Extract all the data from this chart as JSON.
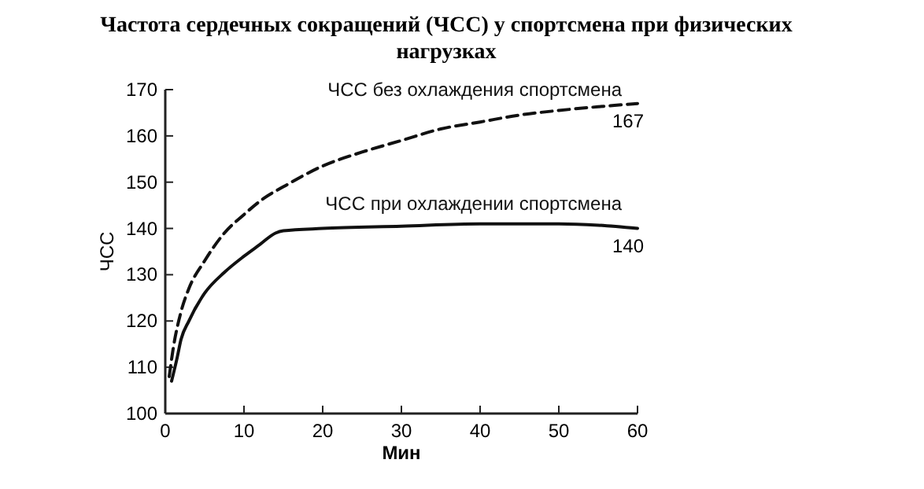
{
  "chart_data": {
    "type": "line",
    "title": "Частота сердечных сокращений (ЧСС) у спортсмена при физических нагрузках",
    "xlabel": "Мин",
    "ylabel": "ЧСС",
    "xlim": [
      0,
      60
    ],
    "xticks": [
      0,
      10,
      20,
      30,
      40,
      50,
      60
    ],
    "ylim": [
      100,
      170
    ],
    "yticks": [
      100,
      110,
      120,
      130,
      140,
      150,
      160,
      170
    ],
    "grid": false,
    "legend": false,
    "series": [
      {
        "name": "ЧСС без охлаждения спортсмена",
        "color": "#111111",
        "line_style": "dashed",
        "x": [
          0.5,
          1,
          2,
          3,
          5,
          7.5,
          10,
          12.5,
          15,
          20,
          25,
          30,
          35,
          40,
          45,
          50,
          55,
          60
        ],
        "values": [
          108,
          114,
          122,
          127,
          133,
          139,
          143,
          146.5,
          149,
          153.5,
          156.5,
          159,
          161.5,
          163,
          164.5,
          165.5,
          166.3,
          167
        ]
      },
      {
        "name": "ЧСС при охлаждении спортсмена",
        "color": "#111111",
        "line_style": "solid",
        "x": [
          0.8,
          1.5,
          2,
          3,
          5,
          7.5,
          10,
          12,
          14,
          15,
          20,
          30,
          40,
          50,
          55,
          60
        ],
        "values": [
          107,
          112,
          116,
          120,
          126,
          130.5,
          134,
          136.5,
          139,
          139.5,
          140,
          140.5,
          141,
          141,
          140.7,
          140
        ]
      }
    ],
    "annotations": [
      {
        "text": "167",
        "x": 60,
        "y": 167
      },
      {
        "text": "140",
        "x": 60,
        "y": 140
      }
    ]
  }
}
